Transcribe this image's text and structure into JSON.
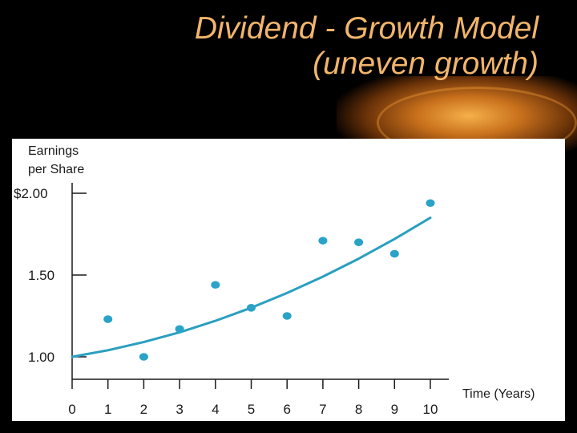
{
  "title_line1": "Dividend - Growth Model",
  "title_line2": "(uneven growth)",
  "chart_data": {
    "type": "scatter",
    "title": "Dividend - Growth Model (uneven growth)",
    "ylabel_line1": "Earnings",
    "ylabel_line2": "per Share",
    "xlabel": "Time (Years)",
    "x_ticks": [
      "0",
      "1",
      "2",
      "3",
      "4",
      "5",
      "6",
      "7",
      "8",
      "9",
      "10"
    ],
    "y_ticks": [
      {
        "value": 2.0,
        "label": "$2.00"
      },
      {
        "value": 1.5,
        "label": "1.50"
      },
      {
        "value": 1.0,
        "label": "1.00"
      }
    ],
    "xlim": [
      0,
      10
    ],
    "ylim": [
      0.85,
      2.05
    ],
    "grid": false,
    "points": {
      "x": [
        1,
        2,
        3,
        4,
        5,
        6,
        7,
        8,
        9,
        10
      ],
      "y": [
        1.23,
        1.0,
        1.17,
        1.44,
        1.3,
        1.25,
        1.71,
        1.7,
        1.63,
        1.94
      ]
    },
    "trend": {
      "x": [
        0,
        1,
        2,
        3,
        4,
        5,
        6,
        7,
        8,
        9,
        10
      ],
      "y": [
        1.0,
        1.04,
        1.09,
        1.15,
        1.22,
        1.3,
        1.39,
        1.49,
        1.6,
        1.72,
        1.85
      ]
    },
    "colors": {
      "points": "#2aa3c8",
      "trend": "#2a9fc0",
      "axis": "#1a1a1a"
    }
  }
}
